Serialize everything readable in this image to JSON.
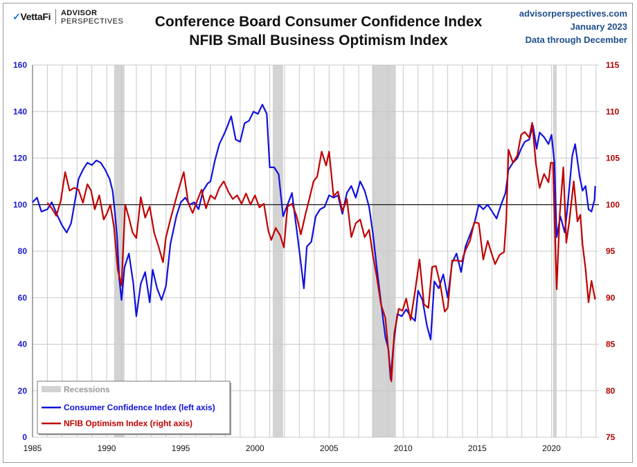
{
  "header": {
    "brand_primary": "VettaFi",
    "brand_secondary_line1": "ADVISOR",
    "brand_secondary_line2": "PERSPECTIVES",
    "title_line1": "Conference Board Consumer Confidence Index",
    "title_line2": "NFIB Small Business Optimism Index",
    "source_site": "advisorperspectives.com",
    "source_date": "January 2023",
    "source_note": "Data through December"
  },
  "colors": {
    "consumer": "#1010dd",
    "nfib": "#c00000",
    "recession": "#d3d3d3",
    "grid": "#c8c8c8",
    "left_axis_text": "#1a1acc",
    "right_axis_text": "#b00000"
  },
  "chart_data": {
    "type": "line",
    "title": "Conference Board Consumer Confidence Index / NFIB Small Business Optimism Index",
    "x_range": [
      1985,
      2023.2
    ],
    "x_ticks": [
      "1985",
      "1990",
      "1995",
      "2000",
      "2005",
      "2010",
      "2015",
      "2020"
    ],
    "y_left": {
      "range": [
        0,
        160
      ],
      "ticks": [
        "0",
        "20",
        "40",
        "60",
        "80",
        "100",
        "120",
        "140",
        "160"
      ]
    },
    "y_right": {
      "range": [
        75,
        115
      ],
      "ticks": [
        "75",
        "80",
        "85",
        "90",
        "95",
        "100",
        "105",
        "110",
        "115"
      ]
    },
    "reference_line": 100,
    "grid": true,
    "legend_position": "bottom-left",
    "legend": {
      "recessions": "Recessions",
      "consumer": "Consumer Confidence Index (left axis)",
      "nfib": "NFIB Optimism Index (right axis)"
    },
    "recessions": [
      [
        1990.5,
        1991.2
      ],
      [
        2001.2,
        2001.9
      ],
      [
        2007.9,
        2009.5
      ],
      [
        2020.1,
        2020.35
      ]
    ],
    "series": [
      {
        "name": "Consumer Confidence Index (left axis)",
        "axis": "left",
        "points": [
          [
            1985.0,
            101
          ],
          [
            1985.3,
            103
          ],
          [
            1985.6,
            97
          ],
          [
            1986.0,
            98
          ],
          [
            1986.3,
            101
          ],
          [
            1986.7,
            95
          ],
          [
            1987.0,
            91
          ],
          [
            1987.3,
            88
          ],
          [
            1987.6,
            92
          ],
          [
            1987.9,
            103
          ],
          [
            1988.1,
            111
          ],
          [
            1988.4,
            115
          ],
          [
            1988.7,
            118
          ],
          [
            1989.0,
            117
          ],
          [
            1989.3,
            119
          ],
          [
            1989.6,
            118
          ],
          [
            1989.9,
            115
          ],
          [
            1990.2,
            111
          ],
          [
            1990.4,
            106
          ],
          [
            1990.55,
            97
          ],
          [
            1990.7,
            86
          ],
          [
            1990.85,
            68
          ],
          [
            1991.0,
            59
          ],
          [
            1991.2,
            73
          ],
          [
            1991.5,
            79
          ],
          [
            1991.8,
            66
          ],
          [
            1992.0,
            52
          ],
          [
            1992.3,
            66
          ],
          [
            1992.6,
            71
          ],
          [
            1992.9,
            58
          ],
          [
            1993.1,
            72
          ],
          [
            1993.4,
            64
          ],
          [
            1993.7,
            59
          ],
          [
            1994.0,
            65
          ],
          [
            1994.3,
            83
          ],
          [
            1994.7,
            95
          ],
          [
            1995.0,
            101
          ],
          [
            1995.3,
            103
          ],
          [
            1995.6,
            100
          ],
          [
            1995.9,
            101
          ],
          [
            1996.2,
            98
          ],
          [
            1996.5,
            106
          ],
          [
            1996.8,
            109
          ],
          [
            1997.0,
            110
          ],
          [
            1997.3,
            119
          ],
          [
            1997.6,
            126
          ],
          [
            1997.9,
            130
          ],
          [
            1998.1,
            133
          ],
          [
            1998.4,
            138
          ],
          [
            1998.7,
            128
          ],
          [
            1999.0,
            127
          ],
          [
            1999.3,
            135
          ],
          [
            1999.6,
            136
          ],
          [
            1999.9,
            140
          ],
          [
            2000.2,
            139
          ],
          [
            2000.5,
            143
          ],
          [
            2000.8,
            139
          ],
          [
            2001.0,
            116
          ],
          [
            2001.3,
            116
          ],
          [
            2001.6,
            113
          ],
          [
            2001.9,
            95
          ],
          [
            2002.2,
            100
          ],
          [
            2002.5,
            105
          ],
          [
            2002.7,
            95
          ],
          [
            2003.0,
            80
          ],
          [
            2003.3,
            64
          ],
          [
            2003.5,
            82
          ],
          [
            2003.8,
            84
          ],
          [
            2004.1,
            95
          ],
          [
            2004.4,
            98
          ],
          [
            2004.7,
            99
          ],
          [
            2005.0,
            104
          ],
          [
            2005.3,
            103
          ],
          [
            2005.6,
            104
          ],
          [
            2005.9,
            96
          ],
          [
            2006.2,
            105
          ],
          [
            2006.5,
            108
          ],
          [
            2006.8,
            103
          ],
          [
            2007.1,
            110
          ],
          [
            2007.4,
            106
          ],
          [
            2007.7,
            99
          ],
          [
            2007.95,
            88
          ],
          [
            2008.2,
            74
          ],
          [
            2008.5,
            58
          ],
          [
            2008.8,
            43
          ],
          [
            2009.0,
            38
          ],
          [
            2009.15,
            25
          ],
          [
            2009.35,
            40
          ],
          [
            2009.6,
            53
          ],
          [
            2009.9,
            52
          ],
          [
            2010.2,
            55
          ],
          [
            2010.5,
            52
          ],
          [
            2010.8,
            50
          ],
          [
            2011.0,
            63
          ],
          [
            2011.3,
            59
          ],
          [
            2011.6,
            48
          ],
          [
            2011.85,
            42
          ],
          [
            2012.1,
            67
          ],
          [
            2012.4,
            64
          ],
          [
            2012.7,
            70
          ],
          [
            2013.0,
            60
          ],
          [
            2013.3,
            75
          ],
          [
            2013.6,
            79
          ],
          [
            2013.9,
            71
          ],
          [
            2014.2,
            82
          ],
          [
            2014.5,
            87
          ],
          [
            2014.8,
            92
          ],
          [
            2015.1,
            100
          ],
          [
            2015.4,
            98
          ],
          [
            2015.7,
            100
          ],
          [
            2016.0,
            97
          ],
          [
            2016.3,
            94
          ],
          [
            2016.6,
            100
          ],
          [
            2016.9,
            105
          ],
          [
            2017.1,
            115
          ],
          [
            2017.4,
            118
          ],
          [
            2017.7,
            120
          ],
          [
            2017.95,
            124
          ],
          [
            2018.2,
            127
          ],
          [
            2018.5,
            128
          ],
          [
            2018.75,
            134
          ],
          [
            2019.0,
            124
          ],
          [
            2019.2,
            131
          ],
          [
            2019.5,
            129
          ],
          [
            2019.8,
            126
          ],
          [
            2020.0,
            130
          ],
          [
            2020.2,
            118
          ],
          [
            2020.35,
            86
          ],
          [
            2020.6,
            95
          ],
          [
            2020.9,
            88
          ],
          [
            2021.1,
            100
          ],
          [
            2021.4,
            121
          ],
          [
            2021.6,
            126
          ],
          [
            2021.9,
            112
          ],
          [
            2022.1,
            106
          ],
          [
            2022.3,
            108
          ],
          [
            2022.5,
            98
          ],
          [
            2022.7,
            97
          ],
          [
            2022.9,
            102
          ],
          [
            2022.95,
            108
          ]
        ]
      },
      {
        "name": "NFIB Optimism Index (right axis)",
        "axis": "right",
        "points": [
          [
            1986.0,
            100.2
          ],
          [
            1986.3,
            99.6
          ],
          [
            1986.6,
            98.8
          ],
          [
            1986.9,
            100.4
          ],
          [
            1987.2,
            103.5
          ],
          [
            1987.5,
            101.5
          ],
          [
            1987.8,
            101.8
          ],
          [
            1988.1,
            101.6
          ],
          [
            1988.4,
            100.2
          ],
          [
            1988.7,
            102.2
          ],
          [
            1988.95,
            101.5
          ],
          [
            1989.2,
            99.5
          ],
          [
            1989.5,
            101.0
          ],
          [
            1989.8,
            98.4
          ],
          [
            1990.0,
            99.0
          ],
          [
            1990.25,
            100.0
          ],
          [
            1990.5,
            97.5
          ],
          [
            1990.75,
            93.0
          ],
          [
            1991.0,
            91.3
          ],
          [
            1991.25,
            100.0
          ],
          [
            1991.5,
            98.6
          ],
          [
            1991.75,
            97.0
          ],
          [
            1992.0,
            96.4
          ],
          [
            1992.3,
            100.8
          ],
          [
            1992.6,
            98.6
          ],
          [
            1992.9,
            99.8
          ],
          [
            1993.2,
            97.0
          ],
          [
            1993.5,
            95.5
          ],
          [
            1993.8,
            93.8
          ],
          [
            1994.0,
            96.5
          ],
          [
            1994.3,
            98.4
          ],
          [
            1994.6,
            100.2
          ],
          [
            1994.9,
            101.9
          ],
          [
            1995.2,
            103.5
          ],
          [
            1995.5,
            100.2
          ],
          [
            1995.8,
            99.1
          ],
          [
            1996.1,
            100.4
          ],
          [
            1996.4,
            101.6
          ],
          [
            1996.7,
            99.6
          ],
          [
            1997.0,
            101.0
          ],
          [
            1997.3,
            100.6
          ],
          [
            1997.6,
            101.8
          ],
          [
            1997.9,
            102.5
          ],
          [
            1998.2,
            101.4
          ],
          [
            1998.5,
            100.6
          ],
          [
            1998.8,
            101.0
          ],
          [
            1999.1,
            100.1
          ],
          [
            1999.4,
            101.2
          ],
          [
            1999.7,
            100.0
          ],
          [
            2000.0,
            101.0
          ],
          [
            2000.3,
            99.7
          ],
          [
            2000.6,
            100.1
          ],
          [
            2000.9,
            97.2
          ],
          [
            2001.1,
            96.2
          ],
          [
            2001.4,
            97.5
          ],
          [
            2001.7,
            96.7
          ],
          [
            2001.95,
            95.4
          ],
          [
            2002.2,
            99.8
          ],
          [
            2002.5,
            100.1
          ],
          [
            2002.8,
            98.8
          ],
          [
            2003.1,
            96.8
          ],
          [
            2003.4,
            98.9
          ],
          [
            2003.7,
            100.8
          ],
          [
            2003.95,
            102.5
          ],
          [
            2004.2,
            103.0
          ],
          [
            2004.5,
            105.7
          ],
          [
            2004.8,
            104.2
          ],
          [
            2005.0,
            105.7
          ],
          [
            2005.3,
            100.9
          ],
          [
            2005.6,
            101.4
          ],
          [
            2005.9,
            99.3
          ],
          [
            2006.2,
            100.6
          ],
          [
            2006.5,
            96.5
          ],
          [
            2006.8,
            98.0
          ],
          [
            2007.1,
            98.4
          ],
          [
            2007.4,
            96.5
          ],
          [
            2007.7,
            97.3
          ],
          [
            2007.95,
            94.6
          ],
          [
            2008.2,
            92.4
          ],
          [
            2008.5,
            89.3
          ],
          [
            2008.8,
            87.8
          ],
          [
            2009.0,
            84.3
          ],
          [
            2009.2,
            81.0
          ],
          [
            2009.4,
            86.2
          ],
          [
            2009.7,
            88.8
          ],
          [
            2009.95,
            88.6
          ],
          [
            2010.2,
            89.9
          ],
          [
            2010.5,
            87.6
          ],
          [
            2010.8,
            90.7
          ],
          [
            2011.1,
            94.1
          ],
          [
            2011.4,
            89.3
          ],
          [
            2011.7,
            88.9
          ],
          [
            2011.95,
            93.3
          ],
          [
            2012.2,
            93.4
          ],
          [
            2012.5,
            91.4
          ],
          [
            2012.8,
            88.5
          ],
          [
            2013.0,
            88.9
          ],
          [
            2013.3,
            94.0
          ],
          [
            2013.6,
            94.0
          ],
          [
            2013.95,
            93.9
          ],
          [
            2014.2,
            95.1
          ],
          [
            2014.5,
            96.1
          ],
          [
            2014.8,
            98.1
          ],
          [
            2015.1,
            98.0
          ],
          [
            2015.4,
            94.1
          ],
          [
            2015.7,
            96.1
          ],
          [
            2015.95,
            94.8
          ],
          [
            2016.2,
            93.6
          ],
          [
            2016.5,
            94.6
          ],
          [
            2016.8,
            94.9
          ],
          [
            2016.95,
            98.4
          ],
          [
            2017.1,
            105.9
          ],
          [
            2017.4,
            104.5
          ],
          [
            2017.7,
            105.3
          ],
          [
            2017.95,
            107.5
          ],
          [
            2018.2,
            107.8
          ],
          [
            2018.5,
            107.2
          ],
          [
            2018.7,
            108.8
          ],
          [
            2018.95,
            104.4
          ],
          [
            2019.2,
            101.8
          ],
          [
            2019.5,
            103.3
          ],
          [
            2019.8,
            102.4
          ],
          [
            2019.95,
            104.5
          ],
          [
            2020.1,
            104.5
          ],
          [
            2020.25,
            96.4
          ],
          [
            2020.35,
            90.9
          ],
          [
            2020.55,
            98.8
          ],
          [
            2020.8,
            104.0
          ],
          [
            2021.0,
            95.9
          ],
          [
            2021.2,
            98.2
          ],
          [
            2021.5,
            102.5
          ],
          [
            2021.75,
            98.2
          ],
          [
            2021.95,
            98.9
          ],
          [
            2022.1,
            95.7
          ],
          [
            2022.3,
            93.1
          ],
          [
            2022.5,
            89.5
          ],
          [
            2022.7,
            91.8
          ],
          [
            2022.95,
            89.8
          ]
        ]
      }
    ]
  }
}
